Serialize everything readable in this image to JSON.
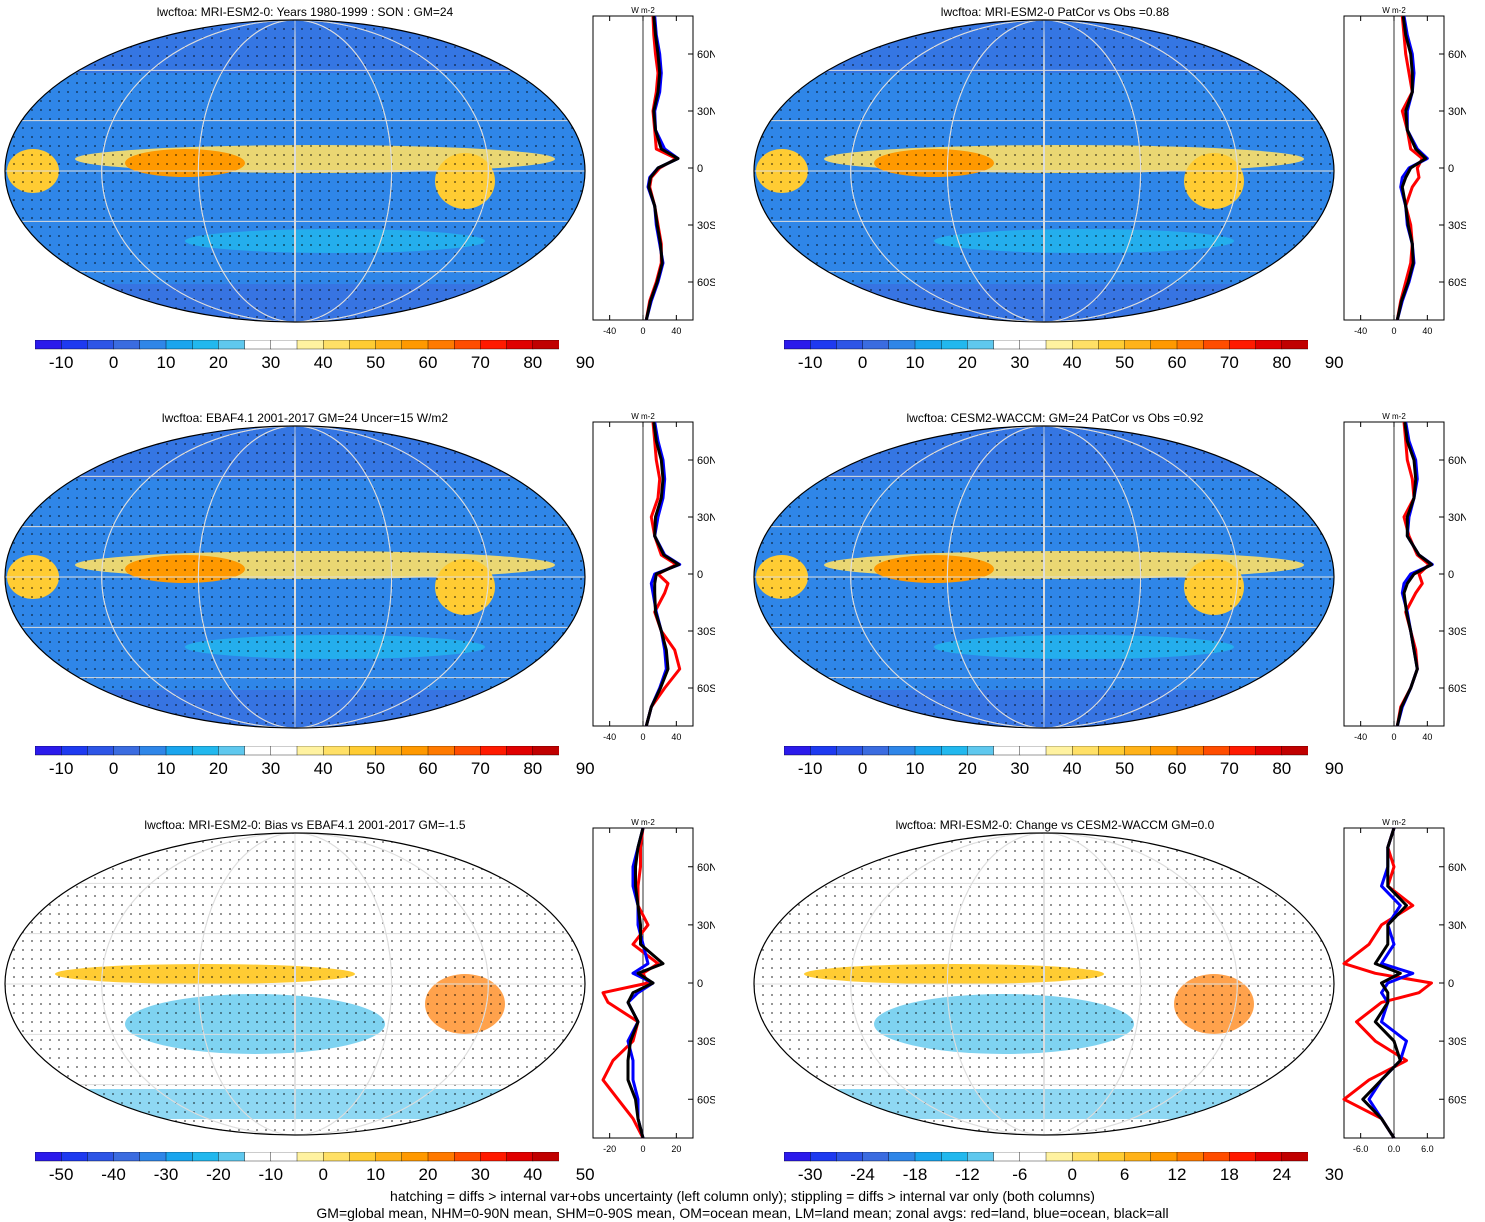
{
  "footer": {
    "line1": "hatching = diffs > internal var+obs uncertainty (left column only); stippling = diffs > internal var only (both columns)",
    "line2": "GM=global mean, NHM=0-90N mean, SHM=0-90S mean, OM=ocean mean, LM=land mean; zonal avgs: red=land, blue=ocean, black=all"
  },
  "colors": {
    "land": "#ff0000",
    "ocean": "#0000ff",
    "all": "#000000",
    "palette": [
      "#2b1aeb",
      "#1e3af0",
      "#2d55e6",
      "#3b6ce0",
      "#2f86e8",
      "#1aa5ee",
      "#22b8ee",
      "#5fc8ee",
      "#ffffff",
      "#ffffff",
      "#fff2a0",
      "#ffe066",
      "#ffcc33",
      "#ffb31a",
      "#ff9900",
      "#ff7a00",
      "#ff4d00",
      "#ff1a00",
      "#e00000",
      "#c00000"
    ]
  },
  "zonal_unit": "W m-2",
  "zonal_lat_labels": [
    "60N",
    "30N",
    "0",
    "30S",
    "60S"
  ],
  "chart_data": [
    {
      "type": "heatmap",
      "title": "lwcftoa: MRI-ESM2-0: Years 1980-1999 : SON : GM=24",
      "colorbar_ticks": [
        "-10",
        "0",
        "10",
        "20",
        "30",
        "40",
        "50",
        "60",
        "70",
        "80",
        "90"
      ],
      "zonal_x_ticks": [
        "-40",
        "0",
        "40"
      ],
      "zonal": {
        "lat": [
          80,
          70,
          60,
          50,
          40,
          30,
          20,
          10,
          5,
          0,
          -5,
          -10,
          -20,
          -30,
          -40,
          -50,
          -60,
          -70,
          -80
        ],
        "land": [
          12,
          13,
          15,
          18,
          16,
          12,
          14,
          16,
          40,
          20,
          10,
          8,
          14,
          18,
          22,
          22,
          16,
          8,
          4
        ],
        "ocean": [
          14,
          16,
          20,
          22,
          20,
          14,
          15,
          26,
          42,
          18,
          8,
          6,
          14,
          16,
          20,
          24,
          18,
          10,
          4
        ],
        "all": [
          13,
          15,
          18,
          20,
          18,
          13,
          15,
          22,
          42,
          18,
          9,
          7,
          14,
          17,
          21,
          23,
          17,
          9,
          4
        ]
      }
    },
    {
      "type": "heatmap",
      "title": "lwcftoa: MRI-ESM2-0 PatCor vs Obs =0.88",
      "colorbar_ticks": [
        "-10",
        "0",
        "10",
        "20",
        "30",
        "40",
        "50",
        "60",
        "70",
        "80",
        "90"
      ],
      "zonal_x_ticks": [
        "-40",
        "0",
        "40"
      ],
      "zonal": {
        "lat": [
          80,
          70,
          60,
          50,
          40,
          30,
          20,
          10,
          5,
          0,
          -5,
          -10,
          -20,
          -30,
          -40,
          -50,
          -60,
          -70,
          -80
        ],
        "land": [
          10,
          12,
          14,
          18,
          22,
          10,
          16,
          20,
          34,
          28,
          30,
          22,
          14,
          20,
          22,
          20,
          14,
          8,
          4
        ],
        "ocean": [
          12,
          16,
          22,
          24,
          22,
          16,
          16,
          28,
          40,
          18,
          10,
          8,
          14,
          16,
          22,
          24,
          18,
          10,
          4
        ],
        "all": [
          11,
          14,
          20,
          22,
          22,
          14,
          16,
          26,
          38,
          20,
          14,
          10,
          14,
          17,
          22,
          23,
          17,
          9,
          4
        ]
      }
    },
    {
      "type": "heatmap",
      "title": "lwcftoa: EBAF4.1 2001-2017 GM=24 Uncer=15 W/m2",
      "colorbar_ticks": [
        "-10",
        "0",
        "10",
        "20",
        "30",
        "40",
        "50",
        "60",
        "70",
        "80",
        "90"
      ],
      "zonal_x_ticks": [
        "-40",
        "0",
        "40"
      ],
      "zonal": {
        "lat": [
          80,
          70,
          60,
          50,
          40,
          30,
          20,
          10,
          5,
          0,
          -5,
          -10,
          -20,
          -30,
          -40,
          -50,
          -60,
          -70,
          -80
        ],
        "land": [
          12,
          14,
          16,
          20,
          18,
          10,
          14,
          22,
          40,
          18,
          30,
          26,
          14,
          22,
          38,
          44,
          26,
          10,
          4
        ],
        "ocean": [
          14,
          18,
          24,
          26,
          24,
          18,
          14,
          26,
          44,
          14,
          10,
          12,
          16,
          22,
          26,
          28,
          20,
          10,
          4
        ],
        "all": [
          13,
          16,
          22,
          24,
          22,
          15,
          14,
          25,
          43,
          16,
          14,
          14,
          15,
          22,
          28,
          30,
          21,
          10,
          4
        ]
      }
    },
    {
      "type": "heatmap",
      "title": "lwcftoa: CESM2-WACCM: GM=24 PatCor vs Obs =0.92",
      "colorbar_ticks": [
        "-10",
        "0",
        "10",
        "20",
        "30",
        "40",
        "50",
        "60",
        "70",
        "80",
        "90"
      ],
      "zonal_x_ticks": [
        "-40",
        "0",
        "40"
      ],
      "zonal": {
        "lat": [
          80,
          70,
          60,
          50,
          40,
          30,
          20,
          10,
          5,
          0,
          -5,
          -10,
          -20,
          -30,
          -40,
          -50,
          -60,
          -70,
          -80
        ],
        "land": [
          12,
          14,
          16,
          22,
          24,
          12,
          18,
          28,
          42,
          30,
          34,
          26,
          14,
          20,
          26,
          28,
          20,
          8,
          4
        ],
        "ocean": [
          14,
          18,
          26,
          28,
          24,
          18,
          16,
          30,
          46,
          20,
          12,
          10,
          16,
          20,
          24,
          28,
          20,
          10,
          4
        ],
        "all": [
          13,
          16,
          24,
          26,
          24,
          16,
          16,
          30,
          45,
          24,
          16,
          12,
          15,
          20,
          24,
          28,
          20,
          9,
          4
        ]
      }
    },
    {
      "type": "heatmap",
      "title": "lwcftoa: MRI-ESM2-0: Bias vs EBAF4.1 2001-2017  GM=-1.5",
      "colorbar_ticks": [
        "-50",
        "-40",
        "-30",
        "-20",
        "-10",
        "0",
        "10",
        "20",
        "30",
        "40",
        "50"
      ],
      "zonal_x_ticks": [
        "-20",
        "0",
        "20"
      ],
      "zonal": {
        "lat": [
          80,
          70,
          60,
          50,
          40,
          30,
          20,
          10,
          5,
          0,
          -5,
          -10,
          -20,
          -30,
          -40,
          -50,
          -60,
          -70,
          -80
        ],
        "land": [
          0,
          -1,
          -1,
          -2,
          -2,
          2,
          -4,
          6,
          0,
          2,
          -16,
          -14,
          -2,
          -4,
          -12,
          -16,
          -10,
          -4,
          0
        ],
        "ocean": [
          0,
          -2,
          -4,
          -4,
          -2,
          -2,
          0,
          2,
          -4,
          4,
          -2,
          -6,
          -2,
          -6,
          -4,
          -4,
          -2,
          -2,
          0
        ],
        "all": [
          0,
          -2,
          -3,
          -3,
          -2,
          -1,
          -1,
          8,
          -2,
          4,
          -4,
          -6,
          -2,
          -5,
          -6,
          -6,
          -3,
          -2,
          0
        ]
      }
    },
    {
      "type": "heatmap",
      "title": "lwcftoa: MRI-ESM2-0: Change vs CESM2-WACCM GM=0.0",
      "colorbar_ticks": [
        "-30",
        "-24",
        "-18",
        "-12",
        "-6",
        "0",
        "6",
        "12",
        "18",
        "24",
        "30"
      ],
      "zonal_x_ticks": [
        "-6.0",
        "0.0",
        "6.0"
      ],
      "zonal": {
        "lat": [
          80,
          70,
          60,
          50,
          40,
          30,
          20,
          10,
          5,
          0,
          -5,
          -10,
          -20,
          -30,
          -40,
          -50,
          -60,
          -70,
          -80
        ],
        "land": [
          0,
          -1,
          0,
          -1,
          3,
          -2,
          -4,
          -8,
          -3,
          6,
          4,
          -2,
          -6,
          -3,
          2,
          -4,
          -8,
          -2,
          0
        ],
        "ocean": [
          0,
          -1,
          -1,
          -2,
          1,
          -1,
          0,
          -2,
          3,
          -1,
          -2,
          -1,
          -2,
          2,
          1,
          -2,
          -4,
          -2,
          0
        ],
        "all": [
          0,
          -1,
          -1,
          -1,
          2,
          -1,
          -1,
          -3,
          1,
          -2,
          -1,
          -1,
          -3,
          0,
          1,
          -2,
          -5,
          -2,
          0
        ]
      }
    }
  ]
}
